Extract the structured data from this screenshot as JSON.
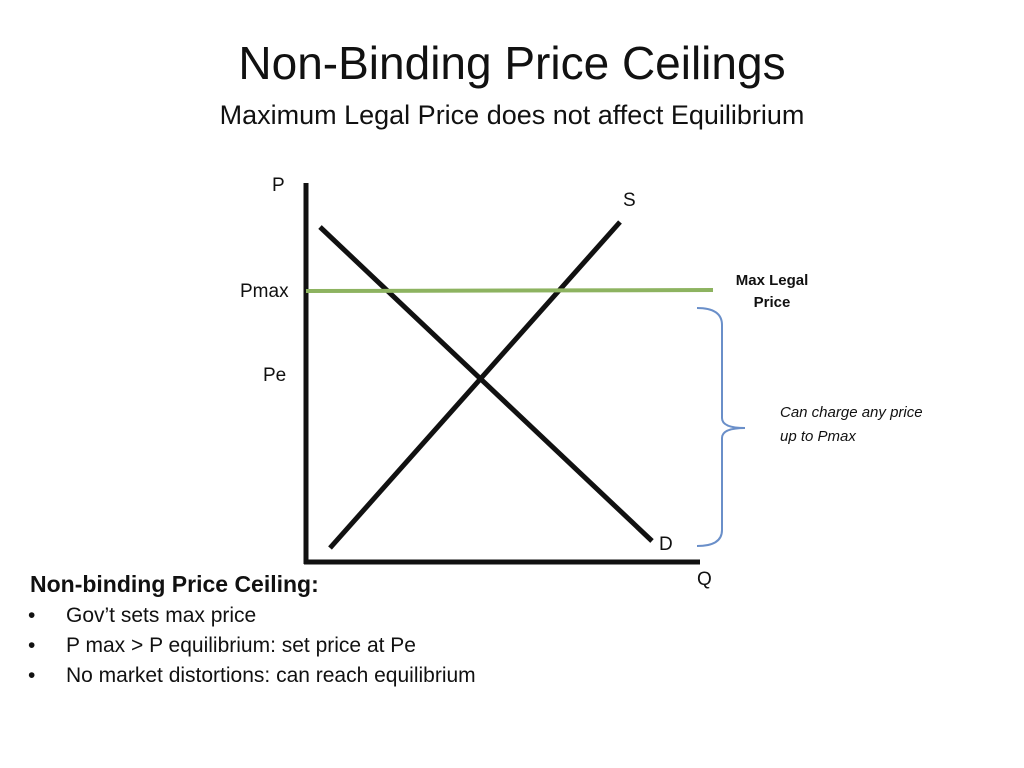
{
  "slide": {
    "title": "Non-Binding Price Ceilings",
    "subtitle": "Maximum Legal Price does not affect Equilibrium"
  },
  "diagram": {
    "axis_labels": {
      "y": "P",
      "x": "Q"
    },
    "curve_labels": {
      "supply": "S",
      "demand": "D"
    },
    "price_labels": {
      "pmax": "Pmax",
      "pe": "Pe"
    },
    "ceiling_label": "Max Legal Price",
    "brace_note": "Can charge any price up to Pmax",
    "colors": {
      "ceiling_line": "#8db360",
      "brace": "#6a8fc9",
      "curves": "#111111"
    }
  },
  "bullets": {
    "heading": "Non-binding Price Ceiling:",
    "marker": "•",
    "items": [
      "Gov’t sets max price",
      "P max > P equilibrium: set price at Pe",
      "No market distortions: can reach equilibrium"
    ]
  }
}
